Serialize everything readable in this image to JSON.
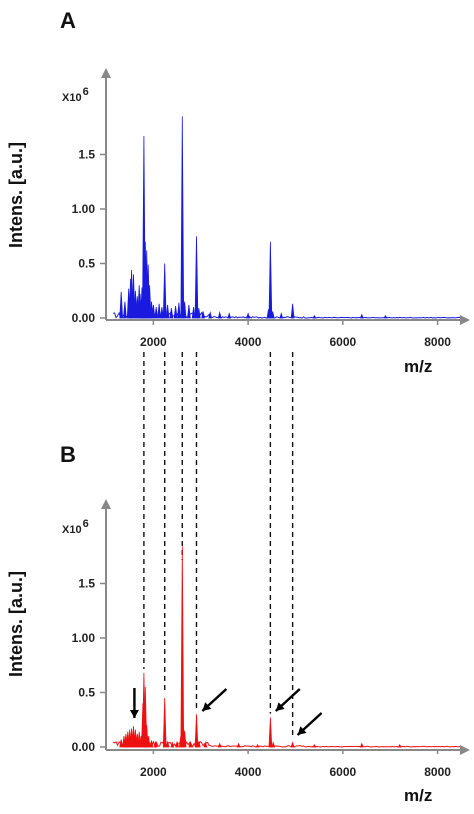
{
  "figure": {
    "xlabel": "m/z",
    "ylabel": "Intens. [a.u.]",
    "multiplier": "X10",
    "multiplier_exp": "6"
  },
  "colors": {
    "panel_a": "#1a1adf",
    "panel_b": "#ee1111",
    "axis": "#888888",
    "guide": "#111111"
  },
  "chart_data": [
    {
      "type": "line",
      "panel": "A",
      "xlabel": "m/z",
      "ylabel": "Intens. [a.u.]",
      "xlim": [
        1000,
        8600
      ],
      "ylim": [
        0,
        1.95
      ],
      "xticks": [
        "2000",
        "4000",
        "6000",
        "8000"
      ],
      "yticks": [
        "0.00",
        "0.5",
        "1.00",
        "1.5"
      ],
      "grid": false,
      "peaks": [
        {
          "x": 1320,
          "y": 0.24
        },
        {
          "x": 1400,
          "y": 0.15
        },
        {
          "x": 1480,
          "y": 0.27
        },
        {
          "x": 1520,
          "y": 0.36
        },
        {
          "x": 1540,
          "y": 0.44
        },
        {
          "x": 1580,
          "y": 0.4
        },
        {
          "x": 1620,
          "y": 0.25
        },
        {
          "x": 1660,
          "y": 0.2
        },
        {
          "x": 1700,
          "y": 0.3
        },
        {
          "x": 1720,
          "y": 0.22
        },
        {
          "x": 1760,
          "y": 0.28
        },
        {
          "x": 1790,
          "y": 0.42
        },
        {
          "x": 1800,
          "y": 1.67
        },
        {
          "x": 1830,
          "y": 0.7
        },
        {
          "x": 1860,
          "y": 0.62
        },
        {
          "x": 1890,
          "y": 0.49
        },
        {
          "x": 1920,
          "y": 0.3
        },
        {
          "x": 1960,
          "y": 0.15
        },
        {
          "x": 2000,
          "y": 0.12
        },
        {
          "x": 2060,
          "y": 0.1
        },
        {
          "x": 2120,
          "y": 0.13
        },
        {
          "x": 2180,
          "y": 0.1
        },
        {
          "x": 2240,
          "y": 0.5
        },
        {
          "x": 2300,
          "y": 0.12
        },
        {
          "x": 2380,
          "y": 0.09
        },
        {
          "x": 2470,
          "y": 0.11
        },
        {
          "x": 2540,
          "y": 0.14
        },
        {
          "x": 2610,
          "y": 1.85
        },
        {
          "x": 2660,
          "y": 0.15
        },
        {
          "x": 2750,
          "y": 0.12
        },
        {
          "x": 2850,
          "y": 0.1
        },
        {
          "x": 2910,
          "y": 0.75
        },
        {
          "x": 2960,
          "y": 0.09
        },
        {
          "x": 3050,
          "y": 0.06
        },
        {
          "x": 3200,
          "y": 0.05
        },
        {
          "x": 3400,
          "y": 0.05
        },
        {
          "x": 3600,
          "y": 0.04
        },
        {
          "x": 4000,
          "y": 0.04
        },
        {
          "x": 4430,
          "y": 0.08
        },
        {
          "x": 4470,
          "y": 0.7
        },
        {
          "x": 4520,
          "y": 0.06
        },
        {
          "x": 4700,
          "y": 0.04
        },
        {
          "x": 4940,
          "y": 0.13
        },
        {
          "x": 5400,
          "y": 0.02
        },
        {
          "x": 6400,
          "y": 0.03
        },
        {
          "x": 6900,
          "y": 0.02
        }
      ]
    },
    {
      "type": "line",
      "panel": "B",
      "xlabel": "m/z",
      "ylabel": "Intens. [a.u.]",
      "xlim": [
        1000,
        8600
      ],
      "ylim": [
        0,
        1.95
      ],
      "xticks": [
        "2000",
        "4000",
        "6000",
        "8000"
      ],
      "yticks": [
        "0.00",
        "0.5",
        "1.00",
        "1.5"
      ],
      "grid": false,
      "peaks": [
        {
          "x": 1320,
          "y": 0.07
        },
        {
          "x": 1380,
          "y": 0.1
        },
        {
          "x": 1420,
          "y": 0.12
        },
        {
          "x": 1460,
          "y": 0.14
        },
        {
          "x": 1500,
          "y": 0.16
        },
        {
          "x": 1540,
          "y": 0.17
        },
        {
          "x": 1580,
          "y": 0.19
        },
        {
          "x": 1620,
          "y": 0.16
        },
        {
          "x": 1660,
          "y": 0.12
        },
        {
          "x": 1700,
          "y": 0.14
        },
        {
          "x": 1740,
          "y": 0.1
        },
        {
          "x": 1780,
          "y": 0.4
        },
        {
          "x": 1800,
          "y": 0.68
        },
        {
          "x": 1830,
          "y": 0.55
        },
        {
          "x": 1860,
          "y": 0.2
        },
        {
          "x": 1900,
          "y": 0.1
        },
        {
          "x": 1960,
          "y": 0.06
        },
        {
          "x": 2050,
          "y": 0.05
        },
        {
          "x": 2240,
          "y": 0.45
        },
        {
          "x": 2300,
          "y": 0.05
        },
        {
          "x": 2400,
          "y": 0.04
        },
        {
          "x": 2500,
          "y": 0.05
        },
        {
          "x": 2580,
          "y": 0.1
        },
        {
          "x": 2610,
          "y": 1.84
        },
        {
          "x": 2660,
          "y": 0.15
        },
        {
          "x": 2780,
          "y": 0.05
        },
        {
          "x": 2910,
          "y": 0.3
        },
        {
          "x": 2960,
          "y": 0.05
        },
        {
          "x": 3100,
          "y": 0.04
        },
        {
          "x": 3400,
          "y": 0.03
        },
        {
          "x": 3800,
          "y": 0.03
        },
        {
          "x": 4200,
          "y": 0.02
        },
        {
          "x": 4470,
          "y": 0.27
        },
        {
          "x": 4530,
          "y": 0.04
        },
        {
          "x": 4940,
          "y": 0.04
        },
        {
          "x": 5400,
          "y": 0.02
        },
        {
          "x": 6400,
          "y": 0.03
        },
        {
          "x": 7200,
          "y": 0.02
        }
      ],
      "arrow_targets_mz": [
        1600,
        2950,
        4500,
        4960
      ],
      "guide_lines_mz": [
        1800,
        2240,
        2610,
        2910,
        4470,
        4940
      ]
    }
  ]
}
